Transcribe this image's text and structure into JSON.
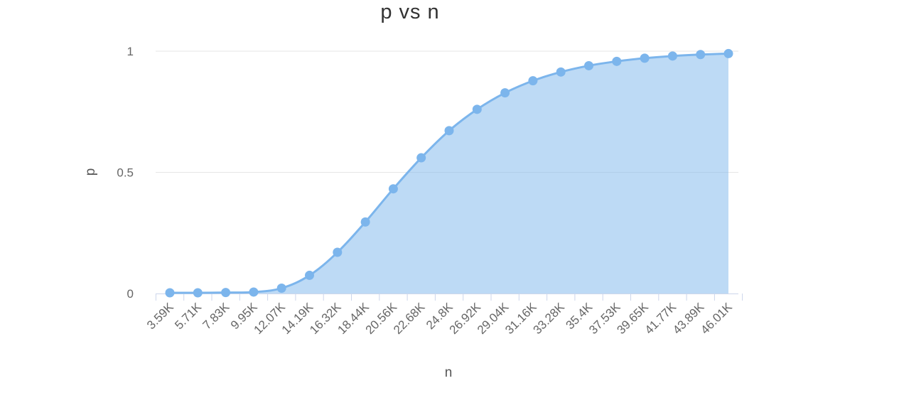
{
  "chart_data": {
    "type": "area",
    "title": "p vs n",
    "xlabel": "n",
    "ylabel": "p",
    "categories": [
      "3.59K",
      "5.71K",
      "7.83K",
      "9.95K",
      "12.07K",
      "14.19K",
      "16.32K",
      "18.44K",
      "20.56K",
      "22.68K",
      "24.8K",
      "26.92K",
      "29.04K",
      "31.16K",
      "33.28K",
      "35.4K",
      "37.53K",
      "39.65K",
      "41.77K",
      "43.89K",
      "46.01K"
    ],
    "series": [
      {
        "values": [
          0.003,
          0.003,
          0.004,
          0.006,
          0.022,
          0.075,
          0.17,
          0.295,
          0.432,
          0.56,
          0.672,
          0.76,
          0.828,
          0.878,
          0.914,
          0.94,
          0.958,
          0.971,
          0.98,
          0.986,
          0.99
        ],
        "color": "#7cb5ec"
      }
    ],
    "yticks": [
      "0",
      "0.5",
      "1"
    ],
    "ylim": [
      0,
      1
    ],
    "grid": true,
    "legend": "none"
  }
}
